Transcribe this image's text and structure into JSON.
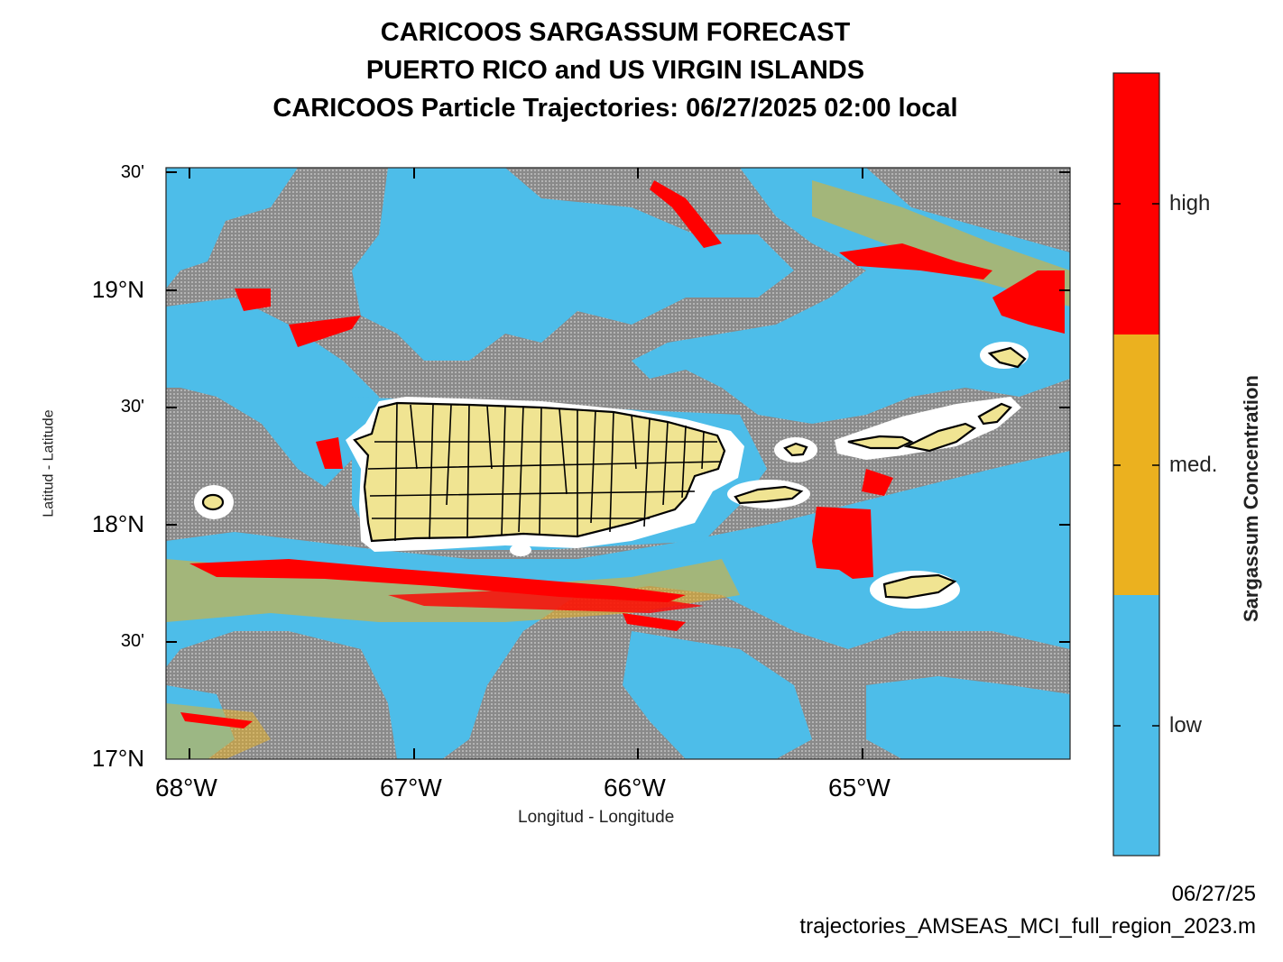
{
  "titles": {
    "line1": "CARICOOS SARGASSUM FORECAST",
    "line2": "PUERTO RICO and US VIRGIN ISLANDS",
    "line3": "CARICOOS Particle Trajectories: 06/27/2025 02:00 local"
  },
  "axes": {
    "xlabel": "Longitud  - Longitude",
    "ylabel": "Latitud  - Latitude",
    "lat_ticks": [
      "30'",
      "19°N",
      "30'",
      "18°N",
      "30'",
      "17°N"
    ],
    "lon_ticks": [
      "68°W",
      "67°W",
      "66°W",
      "65°W"
    ]
  },
  "colorbar": {
    "label": "Sargassum Concentration",
    "levels": [
      "high",
      "med.",
      "low"
    ],
    "colors": {
      "high": "#ff0000",
      "med": "#ebb11f",
      "low": "#4dbde9"
    }
  },
  "map_colors": {
    "sea_grey": "#8e8e8e",
    "land": "#f0e492",
    "buffer": "#ffffff"
  },
  "footer": {
    "date": "06/27/25",
    "script": "trajectories_AMSEAS_MCI_full_region_2023.m"
  }
}
